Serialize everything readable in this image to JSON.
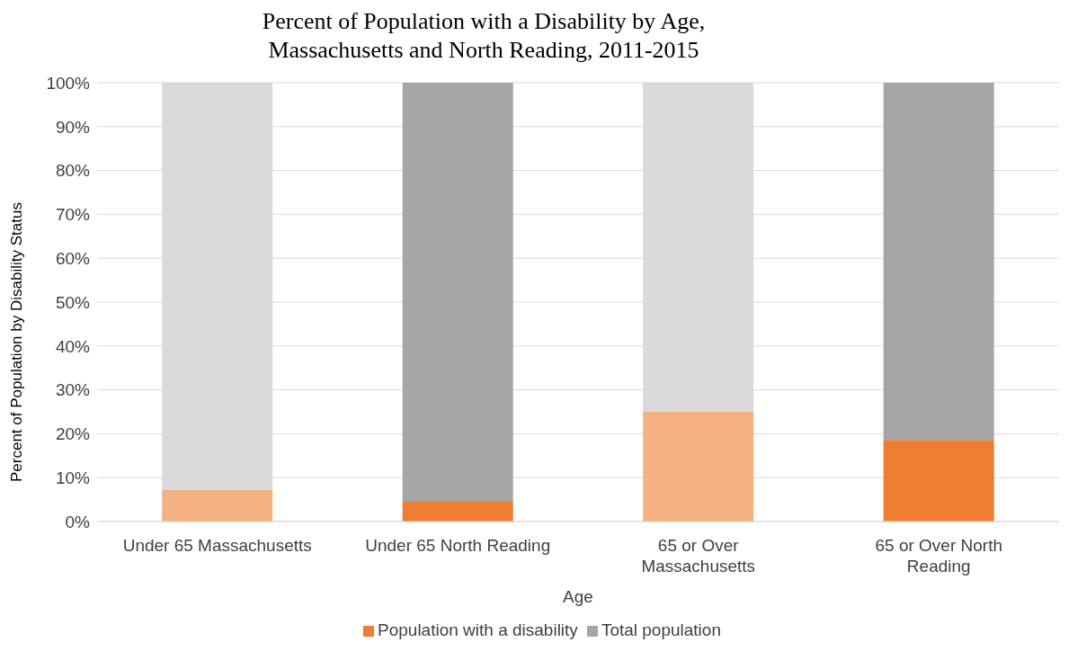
{
  "chart_data": {
    "type": "bar",
    "title": "Percent of Population with a Disability by Age, Massachusetts and North Reading, 2011-2015",
    "xlabel": "Age",
    "ylabel": "Percent of Population by Disability Status",
    "categories": [
      "Under 65 Massachusetts",
      "Under 65 North Reading",
      "65 or Over Massachusetts",
      "65 or Over North Reading"
    ],
    "series": [
      {
        "name": "Population with a disability",
        "color": "#ed7d31",
        "colors": [
          "#f4b183",
          "#ed7d31",
          "#f4b183",
          "#ed7d31"
        ],
        "values": [
          7.2,
          4.5,
          25.1,
          18.6
        ]
      },
      {
        "name": "Total population",
        "color": "#a5a5a5",
        "colors": [
          "#d9d9d9",
          "#a5a5a5",
          "#d9d9d9",
          "#a5a5a5"
        ],
        "values": [
          92.8,
          95.5,
          74.9,
          81.4
        ]
      }
    ],
    "stacked": true,
    "ylim": [
      0,
      100
    ],
    "yticks": [
      {
        "value": 0,
        "label": "0%"
      },
      {
        "value": 10,
        "label": "10%"
      },
      {
        "value": 20,
        "label": "20%"
      },
      {
        "value": 30,
        "label": "30%"
      },
      {
        "value": 40,
        "label": "40%"
      },
      {
        "value": 50,
        "label": "50%"
      },
      {
        "value": 60,
        "label": "60%"
      },
      {
        "value": 70,
        "label": "70%"
      },
      {
        "value": 80,
        "label": "80%"
      },
      {
        "value": 90,
        "label": "90%"
      },
      {
        "value": 100,
        "label": "100%"
      }
    ],
    "grid": "y",
    "legend": "bottom"
  }
}
